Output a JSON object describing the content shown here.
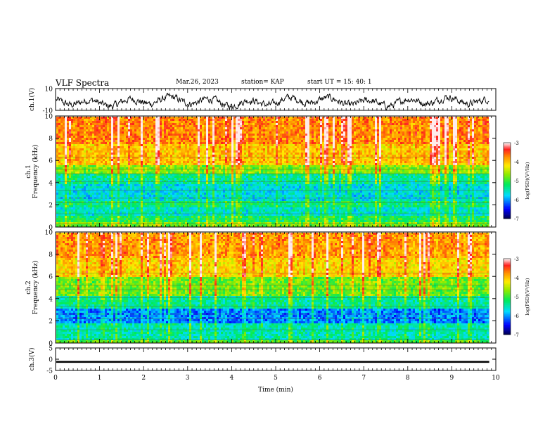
{
  "header": {
    "title": "VLF Spectra",
    "date": "Mar.26, 2023",
    "station": "station= KAP",
    "start": "start  UT  =   15: 40: 1"
  },
  "chart_data": [
    {
      "type": "line",
      "panel": "ch1-waveform",
      "ylabel": "ch.1(V)",
      "ylim": [
        -10,
        10
      ],
      "yticks": [
        "10",
        "-10"
      ],
      "x_range_min": [
        0,
        9.85
      ],
      "series_color": "#000000"
    },
    {
      "type": "heatmap",
      "panel": "ch1-spectrogram",
      "ylabel": "ch.1\nFrequency (kHz)",
      "ylim": [
        0,
        10
      ],
      "yticks": [
        "0",
        "2",
        "4",
        "6",
        "8",
        "10"
      ],
      "x_range_min": [
        0,
        9.85
      ],
      "colorbar": {
        "label": "log(PSD)(V²/Hz)",
        "range": [
          -7,
          -3
        ],
        "ticks": [
          "-3",
          "-4",
          "-5",
          "-6",
          "-7"
        ]
      },
      "bands_khz": [
        {
          "from": 0.0,
          "to": 0.5,
          "level": -4.8
        },
        {
          "from": 0.5,
          "to": 1.2,
          "level": -5.2
        },
        {
          "from": 1.2,
          "to": 1.9,
          "level": -5.6
        },
        {
          "from": 1.9,
          "to": 2.5,
          "level": -5.3
        },
        {
          "from": 2.5,
          "to": 4.0,
          "level": -5.7
        },
        {
          "from": 4.0,
          "to": 4.9,
          "level": -5.4
        },
        {
          "from": 4.9,
          "to": 5.7,
          "level": -4.7
        },
        {
          "from": 5.7,
          "to": 7.5,
          "level": -4.0
        },
        {
          "from": 7.5,
          "to": 10.0,
          "level": -3.7
        }
      ]
    },
    {
      "type": "heatmap",
      "panel": "ch2-spectrogram",
      "ylabel": "ch.2\nFrequency (kHz)",
      "ylim": [
        0,
        10
      ],
      "yticks": [
        "0",
        "2",
        "4",
        "6",
        "8",
        "10"
      ],
      "x_range_min": [
        0,
        9.85
      ],
      "colorbar": {
        "label": "log(PSD)(V²/Hz)",
        "range": [
          -7,
          -3
        ],
        "ticks": [
          "-3",
          "-4",
          "-5",
          "-6",
          "-7"
        ]
      },
      "bands_khz": [
        {
          "from": 0.0,
          "to": 0.4,
          "level": -4.9
        },
        {
          "from": 0.4,
          "to": 1.8,
          "level": -5.5
        },
        {
          "from": 1.8,
          "to": 3.2,
          "level": -6.1
        },
        {
          "from": 3.2,
          "to": 4.4,
          "level": -5.4
        },
        {
          "from": 4.4,
          "to": 6.0,
          "level": -4.8
        },
        {
          "from": 6.0,
          "to": 7.8,
          "level": -4.1
        },
        {
          "from": 7.8,
          "to": 10.0,
          "level": -3.8
        }
      ]
    },
    {
      "type": "line",
      "panel": "ch3-waveform",
      "ylabel": "ch.3(V)",
      "ylim": [
        -5,
        5
      ],
      "yticks": [
        "5",
        "0",
        "-5"
      ],
      "x_range_min": [
        0,
        9.85
      ],
      "level_v": -1.2,
      "band_halfwidth_v": 0.4
    }
  ],
  "x_axis": {
    "label": "Time (min)",
    "range": [
      0,
      10
    ],
    "ticks": [
      "0",
      "1",
      "2",
      "3",
      "4",
      "5",
      "6",
      "7",
      "8",
      "9",
      "10"
    ]
  }
}
